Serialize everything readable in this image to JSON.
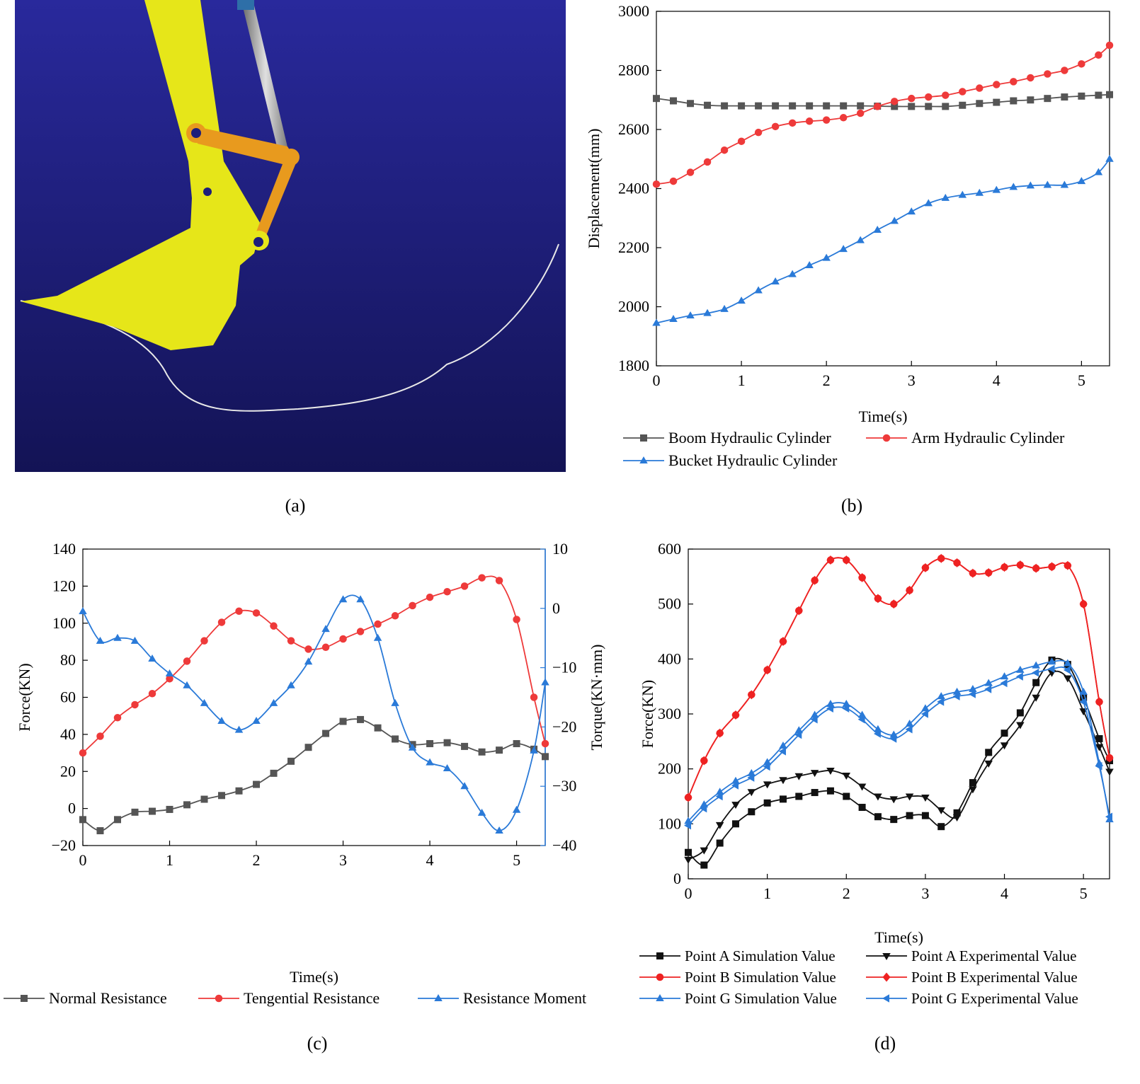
{
  "figure": {
    "captions": [
      "(a)",
      "(b)",
      "(c)",
      "(d)"
    ]
  },
  "colors": {
    "sky_top": "#29299c",
    "sky_bottom": "#131355",
    "bucket": "#e6e619",
    "link": "#e89a1e",
    "trajectory": "#e8e8e8",
    "gray": "#555555",
    "red": "#ee3a3a",
    "blue": "#2a7ad8",
    "black": "#111111"
  },
  "chart_data": [
    {
      "panel": "b",
      "type": "line",
      "title": "",
      "xlabel": "Time(s)",
      "ylabel": "Displacement(mm)",
      "xlim": [
        0,
        5.33
      ],
      "ylim": [
        1800,
        3000
      ],
      "xticks": [
        0,
        1,
        2,
        3,
        4,
        5
      ],
      "yticks": [
        1800,
        2000,
        2200,
        2400,
        2600,
        2800,
        3000
      ],
      "x": [
        0,
        0.2,
        0.4,
        0.6,
        0.8,
        1.0,
        1.2,
        1.4,
        1.6,
        1.8,
        2.0,
        2.2,
        2.4,
        2.6,
        2.8,
        3.0,
        3.2,
        3.4,
        3.6,
        3.8,
        4.0,
        4.2,
        4.4,
        4.6,
        4.8,
        5.0,
        5.2,
        5.33
      ],
      "series": [
        {
          "name": "Boom Hydraulic Cylinder",
          "marker": "square",
          "color": "#555555",
          "values": [
            2705,
            2697,
            2688,
            2682,
            2680,
            2680,
            2680,
            2680,
            2680,
            2680,
            2680,
            2680,
            2680,
            2679,
            2678,
            2678,
            2678,
            2678,
            2682,
            2688,
            2692,
            2697,
            2700,
            2705,
            2710,
            2713,
            2716,
            2718
          ]
        },
        {
          "name": "Arm Hydraulic Cylinder",
          "marker": "circle",
          "color": "#ee3a3a",
          "values": [
            2415,
            2425,
            2455,
            2490,
            2530,
            2560,
            2590,
            2610,
            2622,
            2628,
            2632,
            2640,
            2655,
            2678,
            2695,
            2705,
            2710,
            2716,
            2728,
            2740,
            2752,
            2762,
            2775,
            2788,
            2800,
            2822,
            2852,
            2885
          ]
        },
        {
          "name": "Bucket Hydraulic Cylinder",
          "marker": "triangle",
          "color": "#2a7ad8",
          "values": [
            1945,
            1958,
            1970,
            1978,
            1992,
            2020,
            2055,
            2085,
            2110,
            2140,
            2165,
            2195,
            2225,
            2260,
            2290,
            2322,
            2350,
            2368,
            2378,
            2385,
            2395,
            2405,
            2410,
            2412,
            2412,
            2425,
            2455,
            2500
          ]
        }
      ],
      "legend": [
        "Boom Hydraulic Cylinder",
        "Arm Hydraulic Cylinder",
        "Bucket Hydraulic Cylinder"
      ],
      "legend_position": "bottom"
    },
    {
      "panel": "c",
      "type": "line",
      "title": "",
      "xlabel": "Time(s)",
      "ylabel": "Force(KN)",
      "ylabel_right": "Torque(KN·mm)",
      "xlim": [
        0,
        5.33
      ],
      "ylim": [
        -20,
        140
      ],
      "ylim_right": [
        -40,
        10
      ],
      "xticks": [
        0,
        1,
        2,
        3,
        4,
        5
      ],
      "yticks": [
        -20,
        0,
        20,
        40,
        60,
        80,
        100,
        120,
        140
      ],
      "yticks_right": [
        -40,
        -30,
        -20,
        -10,
        0,
        10
      ],
      "series": [
        {
          "name": "Normal Resistance",
          "marker": "square",
          "color": "#555555",
          "axis": "left",
          "x": [
            0,
            0.2,
            0.4,
            0.6,
            0.8,
            1.0,
            1.2,
            1.4,
            1.6,
            1.8,
            2.0,
            2.2,
            2.4,
            2.6,
            2.8,
            3.0,
            3.2,
            3.4,
            3.6,
            3.8,
            4.0,
            4.2,
            4.4,
            4.6,
            4.8,
            5.0,
            5.2,
            5.33
          ],
          "values": [
            -6,
            -12,
            -6,
            -2,
            -1.5,
            -0.5,
            2,
            5,
            7,
            9.5,
            13,
            19,
            25.5,
            33,
            40.5,
            47,
            48,
            43.5,
            37.5,
            34.5,
            35,
            35.5,
            33.5,
            30.5,
            31.5,
            35,
            32,
            28
          ]
        },
        {
          "name": "Tengential Resistance",
          "marker": "circle",
          "color": "#ee3a3a",
          "axis": "left",
          "x": [
            0,
            0.2,
            0.4,
            0.6,
            0.8,
            1.0,
            1.2,
            1.4,
            1.6,
            1.8,
            2.0,
            2.2,
            2.4,
            2.6,
            2.8,
            3.0,
            3.2,
            3.4,
            3.6,
            3.8,
            4.0,
            4.2,
            4.4,
            4.6,
            4.8,
            5.0,
            5.2,
            5.33
          ],
          "values": [
            30,
            39,
            49,
            56,
            62,
            70,
            79.5,
            90.5,
            100.5,
            106.5,
            105.5,
            98.5,
            90.5,
            86,
            87,
            91.5,
            95.5,
            99.5,
            104,
            109.5,
            114,
            117,
            120,
            124.5,
            123,
            102,
            60,
            35
          ]
        },
        {
          "name": "Resistance Moment",
          "marker": "triangle",
          "color": "#2a7ad8",
          "axis": "right",
          "x": [
            0,
            0.2,
            0.4,
            0.6,
            0.8,
            1.0,
            1.2,
            1.4,
            1.6,
            1.8,
            2.0,
            2.2,
            2.4,
            2.6,
            2.8,
            3.0,
            3.2,
            3.4,
            3.6,
            3.8,
            4.0,
            4.2,
            4.4,
            4.6,
            4.8,
            5.0,
            5.2,
            5.33
          ],
          "values": [
            -0.5,
            -5.5,
            -5,
            -5.5,
            -8.5,
            -11,
            -13,
            -16,
            -19,
            -20.5,
            -19,
            -16,
            -13,
            -9,
            -3.5,
            1.5,
            1.5,
            -5,
            -16,
            -23.5,
            -26,
            -27,
            -30,
            -34.5,
            -37.5,
            -34,
            -24,
            -12.5
          ]
        }
      ],
      "legend": [
        "Normal Resistance",
        "Tengential Resistance",
        "Resistance Moment"
      ],
      "legend_position": "bottom"
    },
    {
      "panel": "d",
      "type": "line",
      "title": "",
      "xlabel": "Time(s)",
      "ylabel": "Force(KN)",
      "xlim": [
        0,
        5.33
      ],
      "ylim": [
        0,
        600
      ],
      "xticks": [
        0,
        1,
        2,
        3,
        4,
        5
      ],
      "yticks": [
        0,
        100,
        200,
        300,
        400,
        500,
        600
      ],
      "x": [
        0,
        0.2,
        0.4,
        0.6,
        0.8,
        1.0,
        1.2,
        1.4,
        1.6,
        1.8,
        2.0,
        2.2,
        2.4,
        2.6,
        2.8,
        3.0,
        3.2,
        3.4,
        3.6,
        3.8,
        4.0,
        4.2,
        4.4,
        4.6,
        4.8,
        5.0,
        5.2,
        5.33
      ],
      "series": [
        {
          "name": "Point A Simulation Value",
          "marker": "square",
          "color": "#111111",
          "values": [
            48,
            25,
            65,
            100,
            122,
            138,
            145,
            150,
            157,
            160,
            150,
            130,
            113,
            108,
            115,
            115,
            95,
            120,
            175,
            230,
            265,
            302,
            357,
            398,
            390,
            330,
            255,
            215
          ]
        },
        {
          "name": "Point A Experimental Value",
          "marker": "triangle-down",
          "color": "#111111",
          "values": [
            35,
            52,
            98,
            135,
            158,
            172,
            180,
            187,
            193,
            197,
            188,
            168,
            150,
            145,
            150,
            148,
            125,
            112,
            163,
            210,
            243,
            280,
            330,
            375,
            365,
            305,
            240,
            195
          ]
        },
        {
          "name": "Point B Simulation Value",
          "marker": "circle",
          "color": "#ee2222",
          "values": [
            148,
            215,
            265,
            298,
            335,
            380,
            432,
            488,
            543,
            580,
            580,
            548,
            510,
            500,
            525,
            566,
            583,
            575,
            556,
            557,
            567,
            571,
            565,
            568,
            570,
            500,
            322,
            220
          ]
        },
        {
          "name": "Point B Experimental Value",
          "marker": "diamond",
          "color": "#ee2222",
          "values": [
            148,
            215,
            265,
            298,
            335,
            380,
            432,
            488,
            543,
            580,
            580,
            548,
            510,
            500,
            525,
            566,
            583,
            575,
            556,
            557,
            567,
            571,
            565,
            568,
            570,
            500,
            322,
            220
          ]
        },
        {
          "name": "Point G Simulation Value",
          "marker": "triangle",
          "color": "#2a7ad8",
          "values": [
            105,
            135,
            158,
            178,
            192,
            212,
            242,
            270,
            298,
            318,
            318,
            298,
            272,
            262,
            282,
            310,
            332,
            340,
            345,
            356,
            368,
            380,
            388,
            395,
            392,
            340,
            210,
            108
          ]
        },
        {
          "name": "Point G Experimental Value",
          "marker": "triangle-left",
          "color": "#2a7ad8",
          "values": [
            97,
            128,
            150,
            170,
            184,
            204,
            232,
            262,
            290,
            310,
            310,
            290,
            264,
            255,
            272,
            300,
            322,
            332,
            336,
            345,
            356,
            368,
            375,
            382,
            380,
            322,
            205,
            113
          ]
        }
      ],
      "legend": [
        "Point A Simulation Value",
        "Point A Experimental Value",
        "Point B Simulation Value",
        "Point B Experimental Value",
        "Point G Simulation Value",
        "Point G Experimental Value"
      ],
      "legend_position": "bottom"
    }
  ]
}
